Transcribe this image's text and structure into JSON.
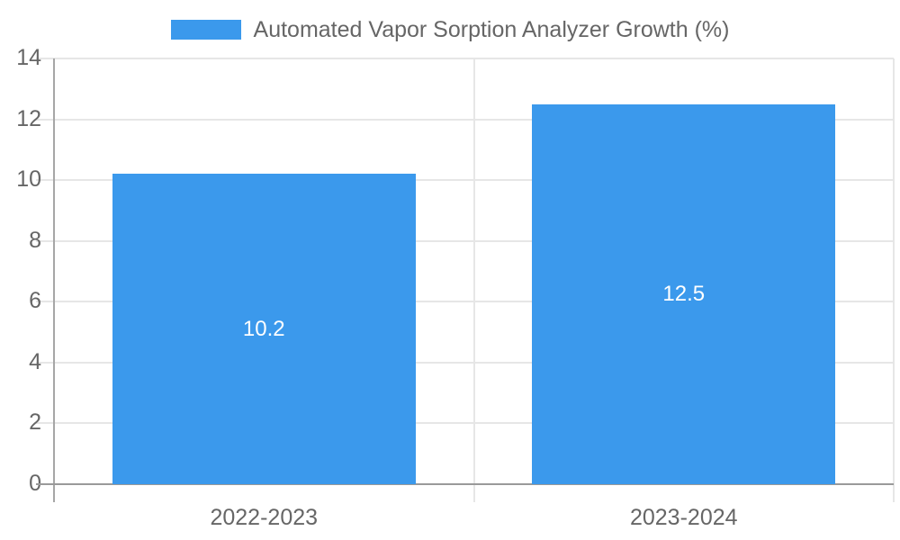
{
  "chart_data": {
    "type": "bar",
    "title": "Automated Vapor Sorption Analyzer Growth (%)",
    "legend_label": "Automated Vapor Sorption Analyzer Growth (%)",
    "legend_position": "top",
    "categories": [
      "2022-2023",
      "2023-2024"
    ],
    "values": [
      10.2,
      12.5
    ],
    "value_labels": [
      "10.2",
      "12.5"
    ],
    "xlabel": "",
    "ylabel": "",
    "ylim": [
      0,
      14
    ],
    "yticks": [
      0,
      2,
      4,
      6,
      8,
      10,
      12,
      14
    ],
    "grid": true,
    "colors": {
      "bar": "#3b99ec",
      "bar_label_text": "#ffffff",
      "tick_text": "#666666",
      "gridline": "#e6e6e6",
      "axis_line": "#9e9e9e",
      "background": "#ffffff"
    }
  }
}
